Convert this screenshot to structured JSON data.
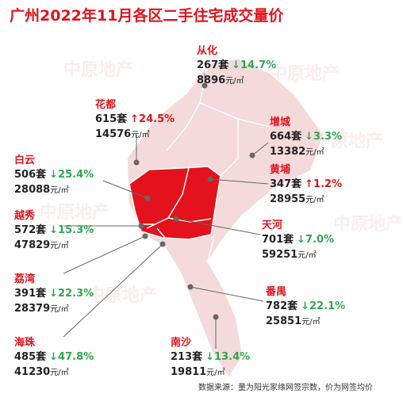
{
  "title": "广州2022年11月各区二手住宅成交量价",
  "watermark": "中原地产",
  "source": "数据来源：量为阳光家缘网签宗数，价为网签均价",
  "districts": [
    {
      "name": "从化",
      "volume": "267",
      "volume_unit": "套",
      "change": "↓14.7%",
      "change_color": "#2fa84f",
      "price": "8896",
      "price_unit": "元/㎡"
    },
    {
      "name": "花都",
      "volume": "615",
      "volume_unit": "套",
      "change": "↑24.5%",
      "change_color": "#e0141e",
      "price": "14576",
      "price_unit": "元/㎡"
    },
    {
      "name": "增城",
      "volume": "664",
      "volume_unit": "套",
      "change": "↓3.3%",
      "change_color": "#2fa84f",
      "price": "13382",
      "price_unit": "元/㎡"
    },
    {
      "name": "白云",
      "volume": "506",
      "volume_unit": "套",
      "change": "↓25.4%",
      "change_color": "#2fa84f",
      "price": "28088",
      "price_unit": "元/㎡"
    },
    {
      "name": "黄埔",
      "volume": "347",
      "volume_unit": "套",
      "change": "↑1.2%",
      "change_color": "#e0141e",
      "price": "28955",
      "price_unit": "元/㎡"
    },
    {
      "name": "越秀",
      "volume": "572",
      "volume_unit": "套",
      "change": "↓15.3%",
      "change_color": "#2fa84f",
      "price": "47829",
      "price_unit": "元/㎡"
    },
    {
      "name": "天河",
      "volume": "701",
      "volume_unit": "套",
      "change": "↓7.0%",
      "change_color": "#2fa84f",
      "price": "59251",
      "price_unit": "元/㎡"
    },
    {
      "name": "荔湾",
      "volume": "391",
      "volume_unit": "套",
      "change": "↓22.3%",
      "change_color": "#2fa84f",
      "price": "28379",
      "price_unit": "元/㎡"
    },
    {
      "name": "番禺",
      "volume": "782",
      "volume_unit": "套",
      "change": "↓22.1%",
      "change_color": "#2fa84f",
      "price": "25851",
      "price_unit": "元/㎡"
    },
    {
      "name": "海珠",
      "volume": "485",
      "volume_unit": "套",
      "change": "↓47.8%",
      "change_color": "#2fa84f",
      "price": "41230",
      "price_unit": "元/㎡"
    },
    {
      "name": "南沙",
      "volume": "213",
      "volume_unit": "套",
      "change": "↓13.4%",
      "change_color": "#2fa84f",
      "price": "19811",
      "price_unit": "元/㎡"
    }
  ]
}
